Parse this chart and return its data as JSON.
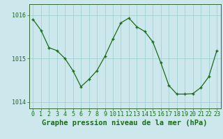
{
  "hours": [
    0,
    1,
    2,
    3,
    4,
    5,
    6,
    7,
    8,
    9,
    10,
    11,
    12,
    13,
    14,
    15,
    16,
    17,
    18,
    19,
    20,
    21,
    22,
    23
  ],
  "pressure": [
    1015.9,
    1015.65,
    1015.25,
    1015.18,
    1015.0,
    1014.72,
    1014.35,
    1014.52,
    1014.72,
    1015.05,
    1015.45,
    1015.82,
    1015.93,
    1015.73,
    1015.62,
    1015.38,
    1014.9,
    1014.38,
    1014.18,
    1014.18,
    1014.19,
    1014.33,
    1014.58,
    1015.18
  ],
  "line_color": "#1a6b1a",
  "marker": "+",
  "background_color": "#cce8ec",
  "grid_color": "#99cccc",
  "title": "Graphe pression niveau de la mer (hPa)",
  "title_color": "#1a6b1a",
  "ylabel_ticks": [
    1014,
    1015,
    1016
  ],
  "ylim": [
    1013.85,
    1016.25
  ],
  "xlim": [
    -0.5,
    23.5
  ],
  "tick_label_color": "#1a6b1a",
  "spine_color": "#336633",
  "title_fontsize": 7.5,
  "tick_fontsize": 6.0,
  "linewidth": 0.9,
  "markersize": 3.5,
  "markeredgewidth": 1.0
}
